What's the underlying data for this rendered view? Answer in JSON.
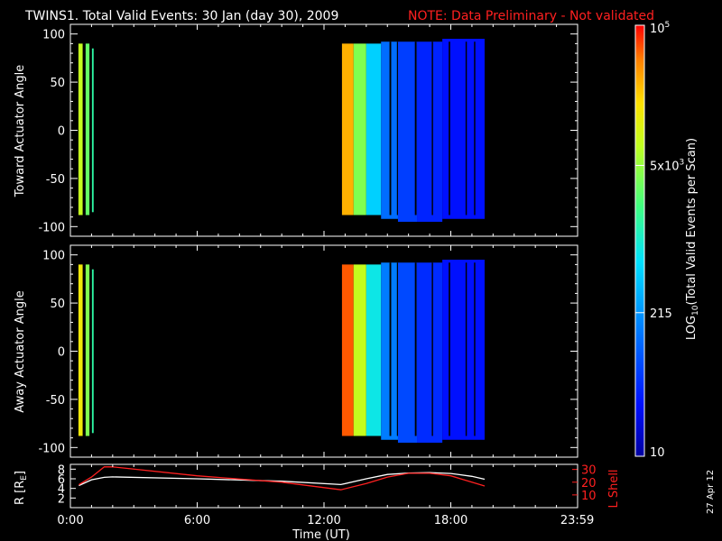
{
  "header": {
    "title": "TWINS1. Total Valid Events: 30 Jan (day  30), 2009",
    "note": "NOTE: Data Preliminary - Not validated"
  },
  "date_stamp": "27 Apr 12",
  "colors": {
    "note": "#ff2020",
    "r_line": "#ffffff",
    "lshell_line": "#ff2020",
    "background": "#000000",
    "frame": "#ffffff"
  },
  "chart_data": [
    {
      "type": "heatmap",
      "ylabel": "Toward Actuator Angle",
      "xlim": [
        0,
        24
      ],
      "ylim": [
        -110,
        110
      ],
      "yticks": [
        100,
        50,
        0,
        -50,
        -100
      ],
      "x_units": "hours UT",
      "colorscale": "log10 (rainbow: blue → cyan → green → yellow → red)",
      "color_range": [
        10,
        100000
      ],
      "blocks": [
        {
          "x": [
            0.38,
            0.58
          ],
          "y": [
            -88,
            90
          ],
          "value": 8000
        },
        {
          "x": [
            0.72,
            0.9
          ],
          "y": [
            -88,
            90
          ],
          "value": 3000
        },
        {
          "x": [
            1.02,
            1.1
          ],
          "y": [
            -85,
            85
          ],
          "value": 1500
        },
        {
          "x": [
            12.85,
            13.4
          ],
          "y": [
            -88,
            90
          ],
          "value": 30000
        },
        {
          "x": [
            13.4,
            14.0
          ],
          "y": [
            -88,
            90
          ],
          "value": 4000
        },
        {
          "x": [
            14.0,
            14.7
          ],
          "y": [
            -88,
            90
          ],
          "value": 500
        },
        {
          "x": [
            14.7,
            15.5
          ],
          "y": [
            -92,
            92
          ],
          "value": 120
        },
        {
          "x": [
            15.5,
            16.4
          ],
          "y": [
            -95,
            92
          ],
          "value": 60
        },
        {
          "x": [
            16.4,
            17.6
          ],
          "y": [
            -95,
            92
          ],
          "value": 40
        },
        {
          "x": [
            17.6,
            19.6
          ],
          "y": [
            -92,
            95
          ],
          "value": 30
        }
      ]
    },
    {
      "type": "heatmap",
      "ylabel": "Away Actuator Angle",
      "xlim": [
        0,
        24
      ],
      "ylim": [
        -110,
        110
      ],
      "yticks": [
        100,
        50,
        0,
        -50,
        -100
      ],
      "x_units": "hours UT",
      "colorscale": "log10 (rainbow: blue → cyan → green → yellow → red)",
      "color_range": [
        10,
        100000
      ],
      "blocks": [
        {
          "x": [
            0.38,
            0.58
          ],
          "y": [
            -88,
            90
          ],
          "value": 15000
        },
        {
          "x": [
            0.72,
            0.9
          ],
          "y": [
            -88,
            90
          ],
          "value": 4000
        },
        {
          "x": [
            1.02,
            1.1
          ],
          "y": [
            -85,
            85
          ],
          "value": 1500
        },
        {
          "x": [
            12.85,
            13.4
          ],
          "y": [
            -88,
            90
          ],
          "value": 60000
        },
        {
          "x": [
            13.4,
            14.0
          ],
          "y": [
            -88,
            90
          ],
          "value": 8000
        },
        {
          "x": [
            14.0,
            14.7
          ],
          "y": [
            -88,
            90
          ],
          "value": 800
        },
        {
          "x": [
            14.7,
            15.5
          ],
          "y": [
            -92,
            92
          ],
          "value": 150
        },
        {
          "x": [
            15.5,
            16.4
          ],
          "y": [
            -95,
            92
          ],
          "value": 70
        },
        {
          "x": [
            16.4,
            17.6
          ],
          "y": [
            -95,
            92
          ],
          "value": 45
        },
        {
          "x": [
            17.6,
            19.6
          ],
          "y": [
            -92,
            95
          ],
          "value": 30
        }
      ]
    },
    {
      "type": "line",
      "xlabel": "Time (UT)",
      "xticks": [
        {
          "x": 0,
          "label": "0:00"
        },
        {
          "x": 6,
          "label": "6:00"
        },
        {
          "x": 12,
          "label": "12:00"
        },
        {
          "x": 18,
          "label": "18:00"
        },
        {
          "x": 23.983,
          "label": "23:59"
        }
      ],
      "xlim": [
        0,
        24
      ],
      "ylabel_left": "R [R",
      "ylabel_left_sub": "E",
      "ylabel_left_end": "]",
      "ylim_left": [
        0,
        9
      ],
      "yticks_left": [
        2,
        4,
        6,
        8
      ],
      "ylabel_right": "L Shell",
      "ylim_right": [
        0,
        34
      ],
      "yticks_right": [
        10,
        20,
        30
      ],
      "series": [
        {
          "axis": "left",
          "color": "#ffffff",
          "x": [
            0.4,
            1.0,
            1.6,
            2.0,
            6.0,
            10.0,
            12.8,
            14.0,
            15.0,
            16.0,
            17.0,
            18.0,
            19.0,
            19.6
          ],
          "y": [
            4.6,
            5.8,
            6.3,
            6.4,
            6.0,
            5.5,
            4.8,
            6.0,
            6.9,
            7.2,
            7.3,
            7.1,
            6.5,
            5.9
          ]
        },
        {
          "axis": "right",
          "color": "#ff2020",
          "x": [
            0.4,
            1.0,
            1.6,
            2.0,
            6.0,
            10.0,
            12.8,
            14.0,
            15.0,
            16.0,
            17.0,
            18.0,
            19.0,
            19.6
          ],
          "y": [
            18,
            24,
            32,
            32,
            25,
            20,
            14,
            19,
            24,
            27,
            27,
            25,
            20,
            17
          ]
        }
      ]
    }
  ],
  "colorbar": {
    "label_prefix": "LOG",
    "label_sub": "10",
    "label_rest": "(Total Valid Events per Scan)",
    "ticks": [
      {
        "value": 10,
        "label": "10",
        "sup": ""
      },
      {
        "value": 215,
        "label": "215",
        "sup": ""
      },
      {
        "value": 5000,
        "label": "5x10",
        "sup": "3"
      },
      {
        "value": 100000,
        "label": "10",
        "sup": "5"
      }
    ],
    "range": [
      10,
      100000
    ]
  }
}
